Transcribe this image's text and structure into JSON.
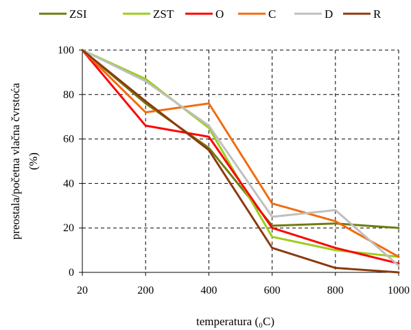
{
  "chart_data": {
    "type": "line",
    "title": "",
    "xlabel": "temperatura (₀C)",
    "ylabel_line1": "preostala/početna vlačna čvrstoća",
    "ylabel_line2": "(%)",
    "categories": [
      "20",
      "200",
      "400",
      "600",
      "800",
      "1000"
    ],
    "ylim": [
      0,
      100
    ],
    "yticks": [
      "0",
      "20",
      "40",
      "60",
      "80",
      "100"
    ],
    "grid": "dashed",
    "legend_position": "top",
    "series": [
      {
        "name": "ZSI",
        "color": "#6f7b10",
        "values": [
          100,
          76,
          56,
          21,
          22,
          20
        ]
      },
      {
        "name": "ZST",
        "color": "#9ccc1c",
        "values": [
          100,
          87,
          65,
          16,
          10,
          7
        ]
      },
      {
        "name": "O",
        "color": "#ff0000",
        "values": [
          100,
          66,
          61,
          20,
          11,
          4
        ]
      },
      {
        "name": "C",
        "color": "#f26b0f",
        "values": [
          100,
          72,
          76,
          31,
          23,
          7
        ]
      },
      {
        "name": "D",
        "color": "#bfbfbf",
        "values": [
          100,
          86,
          66,
          25,
          28,
          3
        ]
      },
      {
        "name": "R",
        "color": "#8b3a0c",
        "values": [
          100,
          77,
          55,
          11,
          2,
          0
        ]
      }
    ]
  }
}
